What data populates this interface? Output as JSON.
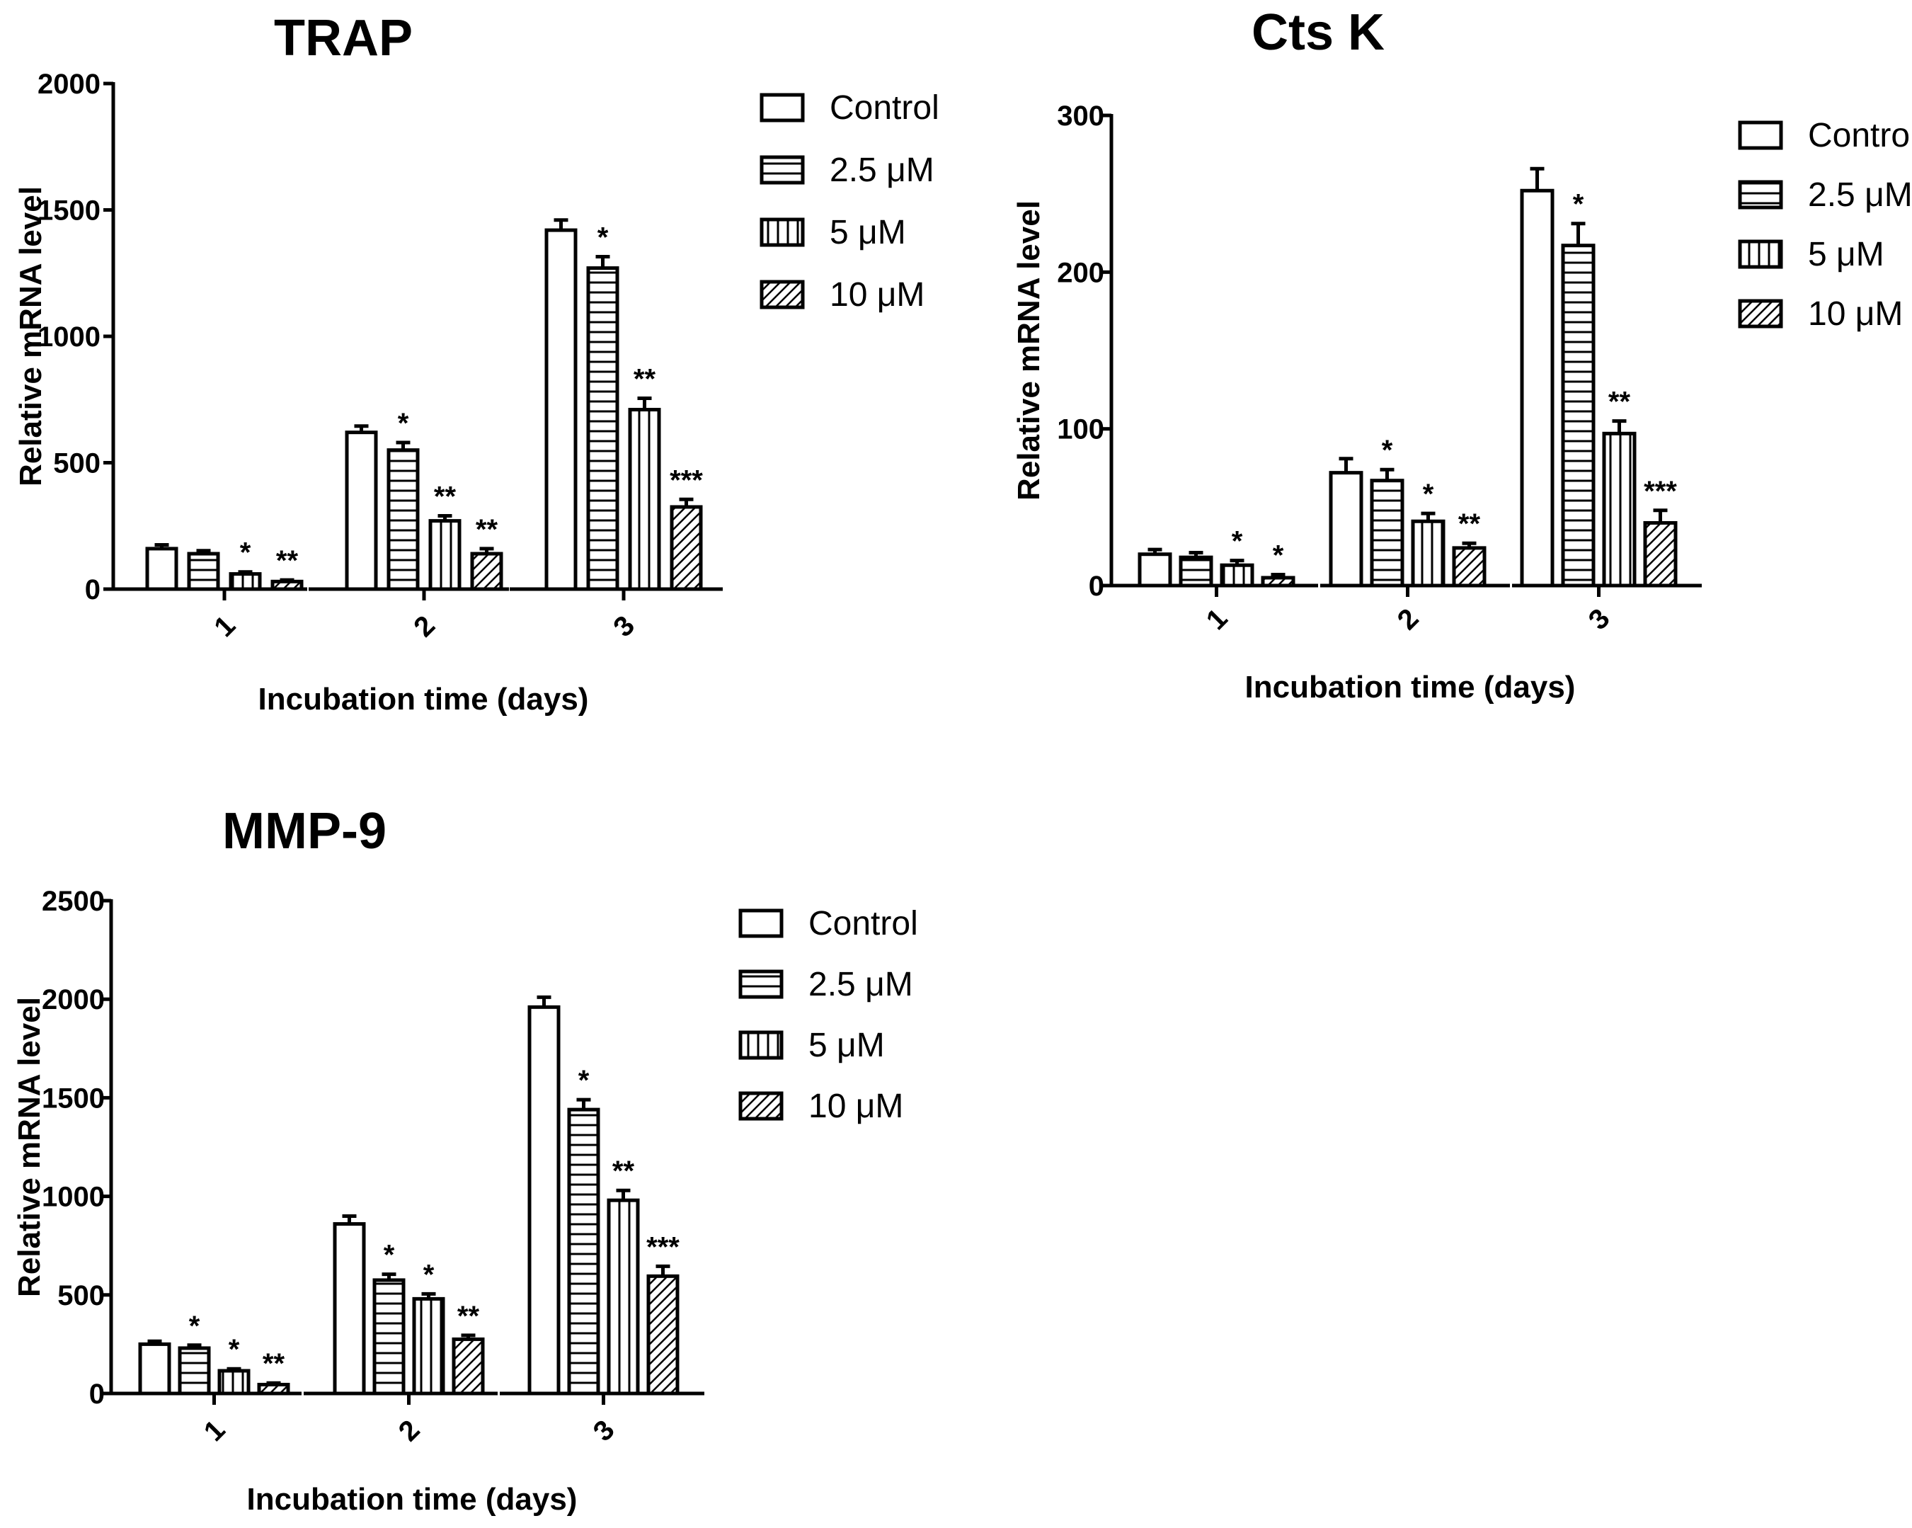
{
  "chart_data": [
    {
      "type": "bar",
      "title": "TRAP",
      "xlabel": "Incubation time (days)",
      "ylabel": "Relative mRNA level",
      "ylim": [
        0,
        2000
      ],
      "yticks": [
        "0",
        "500",
        "1000",
        "1500",
        "2000"
      ],
      "categories": [
        "1",
        "2",
        "3"
      ],
      "series": [
        {
          "name": "Control",
          "values": [
            160,
            620,
            1420
          ],
          "errors": [
            15,
            25,
            40
          ],
          "sig": [
            "",
            "",
            ""
          ]
        },
        {
          "name": "2.5 μM",
          "values": [
            140,
            550,
            1270
          ],
          "errors": [
            12,
            30,
            45
          ],
          "sig": [
            "",
            "*",
            "*"
          ]
        },
        {
          "name": "5 μM",
          "values": [
            60,
            270,
            710
          ],
          "errors": [
            8,
            20,
            45
          ],
          "sig": [
            "*",
            "**",
            "**"
          ]
        },
        {
          "name": "10 μM",
          "values": [
            30,
            140,
            325
          ],
          "errors": [
            6,
            20,
            30
          ],
          "sig": [
            "**",
            "**",
            "***"
          ]
        }
      ]
    },
    {
      "type": "bar",
      "title": "Cts K",
      "xlabel": "Incubation time (days)",
      "ylabel": "Relative mRNA level",
      "ylim": [
        0,
        300
      ],
      "yticks": [
        "0",
        "100",
        "200",
        "300"
      ],
      "categories": [
        "1",
        "2",
        "3"
      ],
      "series": [
        {
          "name": "Control",
          "values": [
            20,
            72,
            252
          ],
          "errors": [
            3,
            9,
            14
          ],
          "sig": [
            "",
            "",
            ""
          ]
        },
        {
          "name": "2.5 μM",
          "values": [
            18,
            67,
            217
          ],
          "errors": [
            3,
            7,
            14
          ],
          "sig": [
            "",
            "*",
            "*"
          ]
        },
        {
          "name": "5 μM",
          "values": [
            13,
            41,
            97
          ],
          "errors": [
            3,
            5,
            8
          ],
          "sig": [
            "*",
            "*",
            "**"
          ]
        },
        {
          "name": "10 μM",
          "values": [
            5,
            24,
            40
          ],
          "errors": [
            2,
            3,
            8
          ],
          "sig": [
            "*",
            "**",
            "***"
          ]
        }
      ]
    },
    {
      "type": "bar",
      "title": "MMP-9",
      "xlabel": "Incubation time (days)",
      "ylabel": "Relative mRNA level",
      "ylim": [
        0,
        2500
      ],
      "yticks": [
        "0",
        "500",
        "1000",
        "1500",
        "2000",
        "2500"
      ],
      "categories": [
        "1",
        "2",
        "3"
      ],
      "series": [
        {
          "name": "Control",
          "values": [
            250,
            860,
            1960
          ],
          "errors": [
            15,
            40,
            50
          ],
          "sig": [
            "",
            "",
            ""
          ]
        },
        {
          "name": "2.5 μM",
          "values": [
            230,
            575,
            1440
          ],
          "errors": [
            15,
            30,
            50
          ],
          "sig": [
            "*",
            "*",
            "*"
          ]
        },
        {
          "name": "5 μM",
          "values": [
            115,
            480,
            980
          ],
          "errors": [
            10,
            25,
            50
          ],
          "sig": [
            "*",
            "*",
            "**"
          ]
        },
        {
          "name": "10 μM",
          "values": [
            45,
            275,
            595
          ],
          "errors": [
            8,
            20,
            50
          ],
          "sig": [
            "**",
            "**",
            "***"
          ]
        }
      ]
    }
  ]
}
